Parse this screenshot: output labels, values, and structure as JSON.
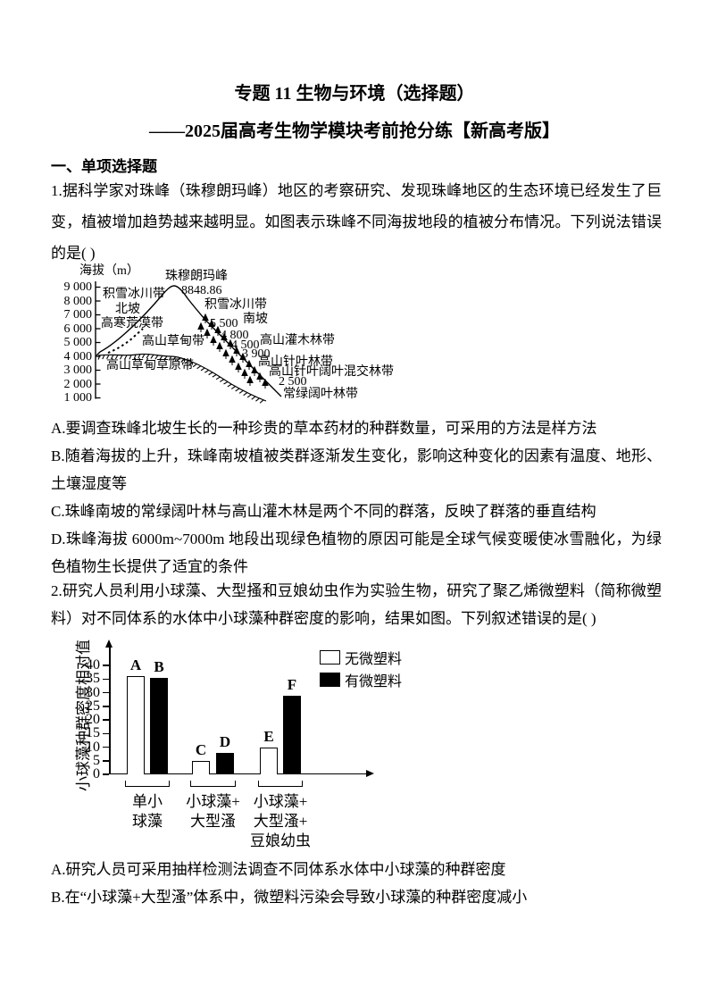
{
  "doc": {
    "title": "专题 11 生物与环境（选择题）",
    "subtitle": "——2025届高考生物学模块考前抢分练【新高考版】",
    "section": "一、单项选择题"
  },
  "q1": {
    "stem": "1.据科学家对珠峰（珠穆朗玛峰）地区的考察研究、发现珠峰地区的生态环境已经发生了巨变，植被增加趋势越来越明显。如图表示珠峰不同海拔地段的植被分布情况。下列说法错误的是( )",
    "options": [
      "A.要调查珠峰北坡生长的一种珍贵的草本药材的种群数量，可采用的方法是样方法",
      "B.随着海拔的上升，珠峰南坡植被类群逐渐发生变化，影响这种变化的因素有温度、地形、土壤湿度等",
      "C.珠峰南坡的常绿阔叶林与高山灌木林是两个不同的群落，反映了群落的垂直结构",
      "D.珠峰海拔 6000m~7000m 地段出现绿色植物的原因可能是全球气候变暖使冰雪融化，为绿色植物生长提供了适宜的条件"
    ]
  },
  "mountain": {
    "axis_label": "海拔（m）",
    "ticks": [
      "9 000",
      "8 000",
      "7 000",
      "6 000",
      "5 000",
      "4 000",
      "3 000",
      "2 000",
      "1 000"
    ],
    "peak_name": "珠穆朗玛峰",
    "peak_elevation": "8848.86",
    "north_slope": {
      "glacier_zone": "积雪冰川带",
      "slope_label": "北坡",
      "desert_zone": "高寒荒漠带",
      "meadow_zone": "高山草甸带",
      "meadow_steppe_zone": "高山草甸草原带"
    },
    "south_slope": {
      "glacier_zone": "积雪冰川带",
      "slope_label": "南坡",
      "boundary_elevations": [
        "5 500",
        "4 800",
        "4 500",
        "3 900",
        "2 500"
      ],
      "shrub_zone": "高山灌木林带",
      "conifer_zone": "高山针叶林带",
      "mixed_zone": "高山针叶阔叶混交林带",
      "evergreen_zone": "常绿阔叶林带"
    }
  },
  "q2": {
    "stem": "2.研究人员利用小球藻、大型搔和豆娘幼虫作为实验生物，研究了聚乙烯微塑料（简称微塑料）对不同体系的水体中小球藻种群密度的影响，结果如图。下列叙述错误的是( )",
    "options": [
      "A.研究人员可采用抽样检测法调查不同体系水体中小球藻的种群密度",
      "B.在“小球藻+大型溞”体系中，微塑料污染会导致小球藻的种群密度减小"
    ]
  },
  "chart_data": {
    "type": "bar",
    "title": "",
    "xlabel": "",
    "ylabel": "小球藻种群密度相对值",
    "ylim": [
      0,
      40
    ],
    "yticks": [
      0,
      5,
      10,
      15,
      20,
      25,
      30,
      35,
      40
    ],
    "categories": [
      "单小球藻",
      "小球藻+大型溞",
      "小球藻+大型溞+豆娘幼虫"
    ],
    "category_lines": [
      [
        "单小",
        "球藻"
      ],
      [
        "小球藻+",
        "大型溞"
      ],
      [
        "小球藻+",
        "大型溞+",
        "豆娘幼虫"
      ]
    ],
    "series": [
      {
        "name": "无微塑料",
        "color": "#ffffff",
        "bar_labels": [
          "A",
          "C",
          "E"
        ],
        "values": [
          36,
          5,
          10
        ]
      },
      {
        "name": "有微塑料",
        "color": "#000000",
        "bar_labels": [
          "B",
          "D",
          "F"
        ],
        "values": [
          35.5,
          8,
          29
        ]
      }
    ],
    "legend_position": "top-right",
    "grid": false
  }
}
